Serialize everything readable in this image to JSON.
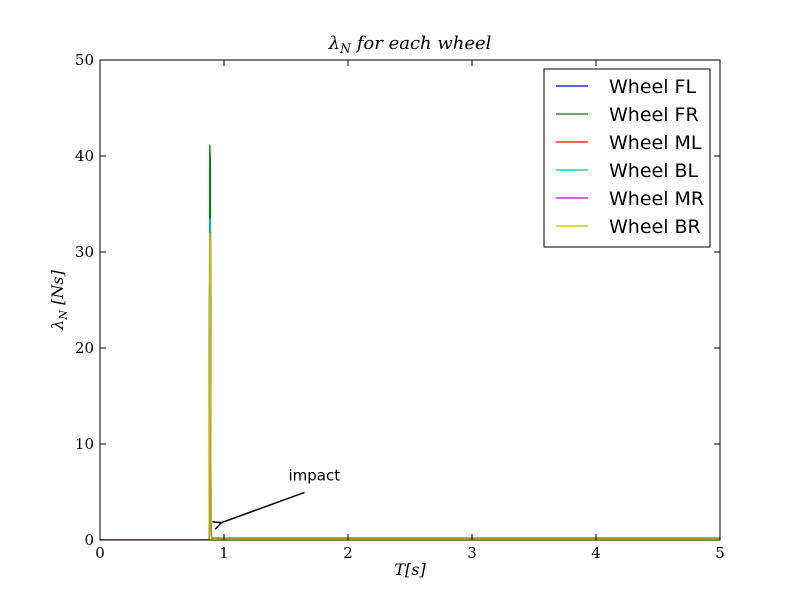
{
  "chart_data": {
    "type": "line",
    "title": "λ_N for each wheel",
    "xlabel": "T[s]",
    "ylabel": "λ_N [Ns]",
    "xlim": [
      0,
      5
    ],
    "ylim": [
      0,
      50
    ],
    "xticks": [
      "0",
      "1",
      "2",
      "3",
      "4",
      "5"
    ],
    "yticks": [
      "0",
      "10",
      "20",
      "30",
      "40",
      "50"
    ],
    "grid": false,
    "legend_position": "upper-right",
    "series": [
      {
        "name": "Wheel FL",
        "color": "#0000ff",
        "x": [
          0,
          0.88,
          0.885,
          0.89,
          0.895,
          0.9,
          5
        ],
        "y": [
          0,
          0,
          32,
          33,
          1,
          0.2,
          0.2
        ]
      },
      {
        "name": "Wheel FR",
        "color": "#008000",
        "x": [
          0,
          0.88,
          0.885,
          0.89,
          0.895,
          0.9,
          5
        ],
        "y": [
          0,
          0,
          41.2,
          39.5,
          2,
          0.2,
          0.2
        ]
      },
      {
        "name": "Wheel ML",
        "color": "#ff0000",
        "x": [
          0,
          0.88,
          0.885,
          0.89,
          0.895,
          0.9,
          5
        ],
        "y": [
          0,
          0,
          32,
          31,
          1,
          0.2,
          0.2
        ]
      },
      {
        "name": "Wheel BL",
        "color": "#00bfbf",
        "x": [
          0,
          0.88,
          0.885,
          0.89,
          0.895,
          0.9,
          5
        ],
        "y": [
          0,
          0,
          33.5,
          33,
          1,
          0.2,
          0.2
        ]
      },
      {
        "name": "Wheel MR",
        "color": "#bf00bf",
        "x": [
          0,
          0.88,
          0.885,
          0.89,
          0.895,
          0.9,
          5
        ],
        "y": [
          0,
          0,
          32,
          31,
          1,
          0.2,
          0.2
        ]
      },
      {
        "name": "Wheel BR",
        "color": "#bfbf00",
        "x": [
          0,
          0.88,
          0.885,
          0.89,
          0.895,
          0.9,
          5
        ],
        "y": [
          0,
          0,
          32,
          31,
          0.5,
          0.2,
          0.2
        ]
      }
    ],
    "annotations": [
      {
        "text": "impact",
        "arrow_to": [
          0.97,
          1.8
        ],
        "text_at": [
          1.52,
          6.2
        ]
      }
    ]
  }
}
